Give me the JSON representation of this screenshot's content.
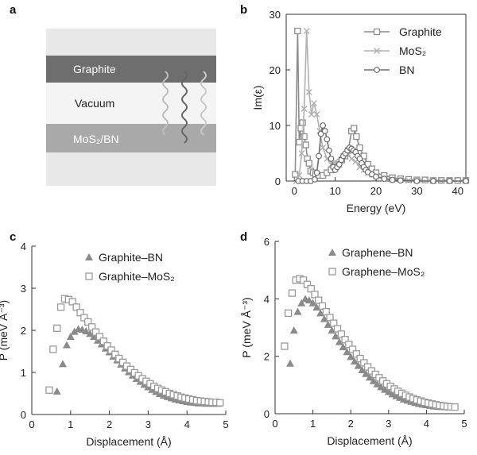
{
  "panel_letters": {
    "a": "a",
    "b": "b",
    "c": "c",
    "d": "d"
  },
  "schematic": {
    "layers": [
      "Graphite",
      "Vacuum",
      "MoS₂/BN"
    ],
    "colors": {
      "top": "#6e6e6e",
      "middle": "#f2f2f2",
      "bottom": "#a9a9a9",
      "frame": "#e6e6e6"
    }
  },
  "chart_data": [
    {
      "id": "b",
      "type": "line",
      "title": "",
      "xlabel": "Energy (eV)",
      "ylabel": "Im(ε)",
      "xlim": [
        -2,
        42
      ],
      "ylim": [
        0,
        30
      ],
      "xticks": [
        0,
        10,
        20,
        30,
        40
      ],
      "yticks": [
        0,
        10,
        20,
        30
      ],
      "legend_position": "top-right",
      "series": [
        {
          "name": "Graphite",
          "marker": "square",
          "color": "#8c8c8c",
          "x": [
            0.2,
            0.8,
            1.2,
            1.6,
            2.0,
            2.4,
            2.8,
            3.2,
            3.6,
            4.0,
            4.6,
            5.2,
            6,
            7,
            8,
            9,
            10,
            10.8,
            11.6,
            12.4,
            13.2,
            14,
            14.6,
            15.2,
            16,
            17,
            18,
            19,
            20,
            22,
            24,
            26,
            28,
            30,
            32,
            34,
            36,
            38,
            40,
            42
          ],
          "y": [
            1.2,
            27,
            7,
            9.5,
            10.5,
            8,
            6.5,
            4,
            3.2,
            1.8,
            1.5,
            1.2,
            1.0,
            1.0,
            1.5,
            2,
            2.5,
            3,
            3.8,
            4.5,
            5.5,
            9,
            9.5,
            8,
            6,
            4.5,
            3,
            2.2,
            1.5,
            1.0,
            0.6,
            0.4,
            0.3,
            0.2,
            0.2,
            0.1,
            0.1,
            0.1,
            0.1,
            0.1
          ]
        },
        {
          "name": "MoS₂",
          "marker": "x",
          "color": "#b0b0b0",
          "x": [
            0.5,
            1.2,
            1.8,
            2.4,
            3.0,
            3.6,
            4.2,
            4.8,
            5.5,
            6.2,
            7,
            8,
            9,
            10,
            11,
            12,
            13,
            14,
            15,
            16,
            17,
            18,
            19,
            20,
            22,
            24,
            26,
            28,
            30,
            33,
            36,
            39,
            42
          ],
          "y": [
            0,
            1,
            5,
            13,
            27,
            16,
            12,
            14,
            12,
            9,
            6,
            4,
            3,
            3.5,
            3,
            4.5,
            5,
            4,
            3.5,
            2.5,
            2,
            1.5,
            1.2,
            0.8,
            0.5,
            0.3,
            0.2,
            0.1,
            0.1,
            0.1,
            0,
            0,
            0
          ]
        },
        {
          "name": "BN",
          "marker": "circle",
          "color": "#6e6e6e",
          "x": [
            1,
            2,
            3,
            4,
            5,
            5.5,
            6,
            6.5,
            7,
            7.5,
            8,
            8.5,
            9,
            9.5,
            10,
            10.5,
            11,
            11.5,
            12,
            12.5,
            13,
            13.5,
            14,
            14.5,
            15,
            15.5,
            16,
            16.5,
            17,
            17.5,
            18,
            19,
            20,
            22,
            24,
            26,
            30,
            34,
            38,
            42
          ],
          "y": [
            0,
            0,
            0,
            0,
            0.3,
            1.5,
            4.5,
            8.5,
            10,
            9,
            7.5,
            5.5,
            4,
            2.5,
            2,
            2.5,
            3,
            3.8,
            4.5,
            5,
            5.5,
            6,
            5.8,
            5.5,
            5.2,
            4.5,
            4,
            3.2,
            2.5,
            2,
            1.6,
            1.2,
            0.8,
            0.4,
            0.2,
            0.1,
            0,
            0,
            0,
            0
          ]
        }
      ]
    },
    {
      "id": "c",
      "type": "scatter",
      "title": "",
      "xlabel": "Displacement (Å)",
      "ylabel": "P (meV Å⁻³)",
      "xlim": [
        0,
        5
      ],
      "ylim": [
        0,
        4
      ],
      "xticks": [
        0,
        1,
        2,
        3,
        4,
        5
      ],
      "yticks": [
        0,
        1,
        2,
        3,
        4
      ],
      "legend_position": "top-center",
      "series": [
        {
          "name": "Graphite–BN",
          "marker": "triangle",
          "color": "#8a8a8a",
          "x": [
            0.65,
            0.8,
            0.9,
            1.0,
            1.1,
            1.2,
            1.3,
            1.4,
            1.5,
            1.6,
            1.7,
            1.8,
            1.9,
            2.0,
            2.1,
            2.2,
            2.3,
            2.4,
            2.5,
            2.6,
            2.7,
            2.8,
            2.9,
            3.0,
            3.1,
            3.2,
            3.3,
            3.4,
            3.5,
            3.6,
            3.7,
            3.8,
            3.9,
            4.0,
            4.1,
            4.2,
            4.3,
            4.4,
            4.5,
            4.6,
            4.7,
            4.8
          ],
          "y": [
            0.55,
            1.2,
            1.65,
            1.85,
            1.97,
            2.03,
            2.02,
            1.98,
            1.92,
            1.85,
            1.76,
            1.67,
            1.57,
            1.48,
            1.38,
            1.29,
            1.19,
            1.1,
            1.01,
            0.93,
            0.85,
            0.78,
            0.71,
            0.65,
            0.59,
            0.54,
            0.49,
            0.45,
            0.42,
            0.39,
            0.36,
            0.34,
            0.32,
            0.3,
            0.29,
            0.28,
            0.27,
            0.27,
            0.26,
            0.26,
            0.26,
            0.26
          ]
        },
        {
          "name": "Graphite–MoS₂",
          "marker": "square-open",
          "color": "#9a9a9a",
          "x": [
            0.45,
            0.55,
            0.65,
            0.75,
            0.85,
            0.95,
            1.05,
            1.15,
            1.25,
            1.35,
            1.45,
            1.55,
            1.65,
            1.75,
            1.85,
            1.95,
            2.05,
            2.15,
            2.25,
            2.35,
            2.45,
            2.55,
            2.65,
            2.75,
            2.85,
            2.95,
            3.05,
            3.15,
            3.25,
            3.35,
            3.45,
            3.55,
            3.65,
            3.75,
            3.85,
            3.95,
            4.05,
            4.15,
            4.25,
            4.35,
            4.45,
            4.55,
            4.65,
            4.75,
            4.85
          ],
          "y": [
            0.58,
            1.55,
            2.05,
            2.55,
            2.75,
            2.73,
            2.68,
            2.55,
            2.42,
            2.3,
            2.2,
            2.08,
            1.96,
            1.85,
            1.74,
            1.63,
            1.53,
            1.43,
            1.33,
            1.24,
            1.15,
            1.07,
            0.99,
            0.92,
            0.85,
            0.79,
            0.73,
            0.67,
            0.62,
            0.58,
            0.54,
            0.5,
            0.47,
            0.44,
            0.41,
            0.39,
            0.37,
            0.35,
            0.33,
            0.32,
            0.31,
            0.3,
            0.29,
            0.29,
            0.28
          ]
        }
      ]
    },
    {
      "id": "d",
      "type": "scatter",
      "title": "",
      "xlabel": "Displacement (Å)",
      "ylabel": "P (meV Å⁻³)",
      "xlim": [
        0,
        5
      ],
      "ylim": [
        0,
        6
      ],
      "xticks": [
        0,
        1,
        2,
        3,
        4,
        5
      ],
      "yticks": [
        0,
        2,
        4,
        6
      ],
      "legend_position": "top-center",
      "series": [
        {
          "name": "Graphene–BN",
          "marker": "triangle",
          "color": "#8a8a8a",
          "x": [
            0.4,
            0.5,
            0.6,
            0.7,
            0.8,
            0.9,
            1.0,
            1.1,
            1.2,
            1.3,
            1.4,
            1.5,
            1.6,
            1.7,
            1.8,
            1.9,
            2.0,
            2.1,
            2.2,
            2.3,
            2.4,
            2.5,
            2.6,
            2.7,
            2.8,
            2.9,
            3.0,
            3.1,
            3.2,
            3.3,
            3.4,
            3.5,
            3.6,
            3.7,
            3.8,
            3.9,
            4.0,
            4.1,
            4.2,
            4.3,
            4.4,
            4.5,
            4.6,
            4.7
          ],
          "y": [
            1.75,
            2.9,
            3.55,
            3.85,
            4.0,
            3.95,
            3.85,
            3.7,
            3.5,
            3.3,
            3.1,
            2.9,
            2.7,
            2.5,
            2.32,
            2.15,
            1.98,
            1.82,
            1.67,
            1.52,
            1.39,
            1.26,
            1.14,
            1.03,
            0.93,
            0.84,
            0.76,
            0.68,
            0.62,
            0.56,
            0.5,
            0.46,
            0.42,
            0.38,
            0.35,
            0.32,
            0.3,
            0.28,
            0.26,
            0.25,
            0.24,
            0.23,
            0.22,
            0.22
          ]
        },
        {
          "name": "Graphene–MoS₂",
          "marker": "square-open",
          "color": "#9a9a9a",
          "x": [
            0.25,
            0.35,
            0.45,
            0.55,
            0.65,
            0.75,
            0.85,
            0.95,
            1.05,
            1.15,
            1.25,
            1.35,
            1.45,
            1.55,
            1.65,
            1.75,
            1.85,
            1.95,
            2.05,
            2.15,
            2.25,
            2.35,
            2.45,
            2.55,
            2.65,
            2.75,
            2.85,
            2.95,
            3.05,
            3.15,
            3.25,
            3.35,
            3.45,
            3.55,
            3.65,
            3.75,
            3.85,
            3.95,
            4.05,
            4.15,
            4.25,
            4.35,
            4.45,
            4.55,
            4.65,
            4.75
          ],
          "y": [
            2.35,
            3.5,
            4.2,
            4.65,
            4.7,
            4.65,
            4.5,
            4.35,
            4.15,
            3.95,
            3.75,
            3.55,
            3.35,
            3.15,
            2.96,
            2.77,
            2.58,
            2.41,
            2.24,
            2.08,
            1.92,
            1.77,
            1.63,
            1.49,
            1.37,
            1.25,
            1.14,
            1.04,
            0.95,
            0.86,
            0.78,
            0.71,
            0.64,
            0.58,
            0.53,
            0.48,
            0.44,
            0.4,
            0.37,
            0.34,
            0.31,
            0.29,
            0.27,
            0.25,
            0.24,
            0.23
          ]
        }
      ]
    }
  ]
}
